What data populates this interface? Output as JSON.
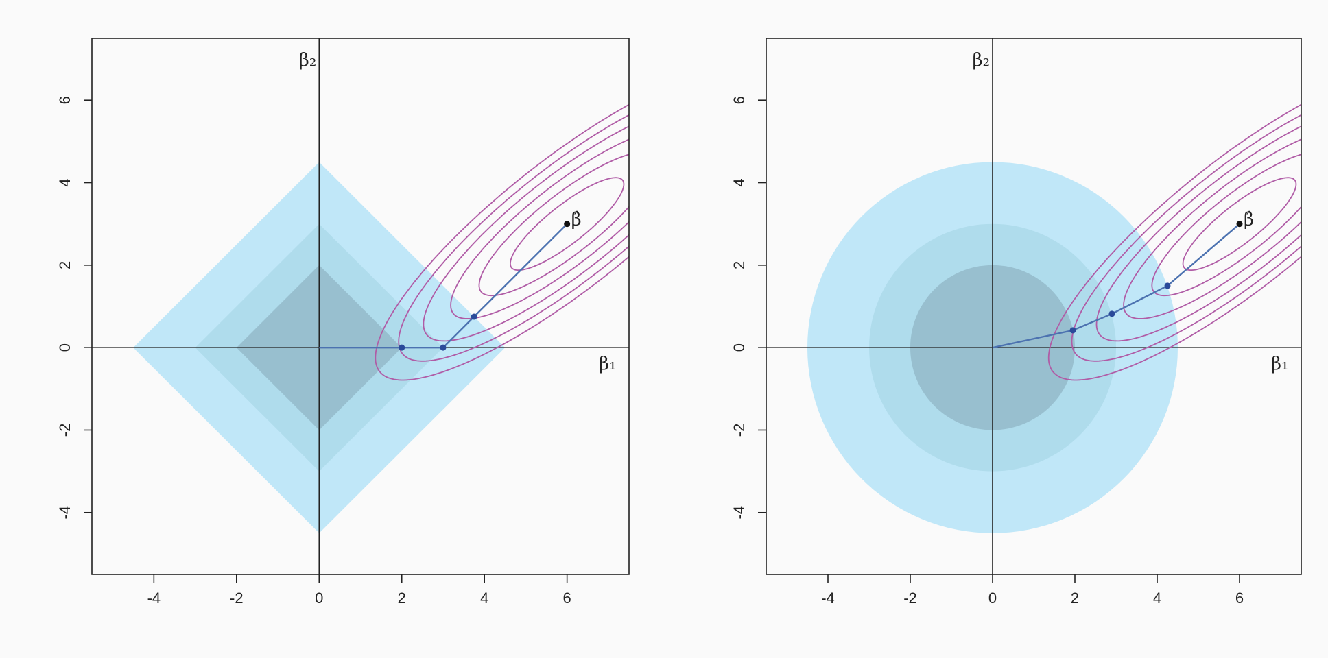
{
  "chart_data": [
    {
      "type": "line",
      "constraint": "lasso",
      "xlim": [
        -5.5,
        7.5
      ],
      "ylim": [
        -5.5,
        7.5
      ],
      "x_ticks": [
        -4,
        -2,
        0,
        2,
        4,
        6
      ],
      "y_ticks": [
        -4,
        -2,
        0,
        2,
        4,
        6
      ],
      "x_tick_labels": [
        "-4",
        "-2",
        "0",
        "2",
        "4",
        "6"
      ],
      "y_tick_labels": [
        "-4",
        "-2",
        "0",
        "2",
        "4",
        "6"
      ],
      "xlabel": "β₁",
      "ylabel": "β₂",
      "beta_hat_label": "β̂",
      "beta_hat": [
        6,
        3
      ],
      "constraint_regions": [
        {
          "radius": 4.5,
          "color": "#c0e7f8"
        },
        {
          "radius": 3.0,
          "color": "#afdcec"
        },
        {
          "radius": 2.0,
          "color": "#98bfcf"
        }
      ],
      "path_points": [
        [
          0,
          0
        ],
        [
          2,
          0
        ],
        [
          3,
          0
        ],
        [
          3.75,
          0.75
        ],
        [
          6,
          3
        ]
      ],
      "path_color": "#4c72b0",
      "contour_color": "#b05ca6",
      "contour_levels": [
        0.5,
        1.2,
        2.1,
        3.2,
        4.4,
        5.7
      ]
    },
    {
      "type": "line",
      "constraint": "ridge",
      "xlim": [
        -5.5,
        7.5
      ],
      "ylim": [
        -5.5,
        7.5
      ],
      "x_ticks": [
        -4,
        -2,
        0,
        2,
        4,
        6
      ],
      "y_ticks": [
        -4,
        -2,
        0,
        2,
        4,
        6
      ],
      "x_tick_labels": [
        "-4",
        "-2",
        "0",
        "2",
        "4",
        "6"
      ],
      "y_tick_labels": [
        "-4",
        "-2",
        "0",
        "2",
        "4",
        "6"
      ],
      "xlabel": "β₁",
      "ylabel": "β₂",
      "beta_hat_label": "β̂",
      "beta_hat": [
        6,
        3
      ],
      "constraint_regions": [
        {
          "radius": 4.5,
          "color": "#c0e7f8"
        },
        {
          "radius": 3.0,
          "color": "#afdcec"
        },
        {
          "radius": 2.0,
          "color": "#98bfcf"
        }
      ],
      "path_points": [
        [
          0,
          0
        ],
        [
          1.95,
          0.42
        ],
        [
          2.9,
          0.82
        ],
        [
          4.25,
          1.5
        ],
        [
          6,
          3
        ]
      ],
      "path_color": "#4c72b0",
      "contour_color": "#b05ca6",
      "contour_levels": [
        0.5,
        1.2,
        2.1,
        3.2,
        4.4,
        5.7
      ]
    }
  ]
}
